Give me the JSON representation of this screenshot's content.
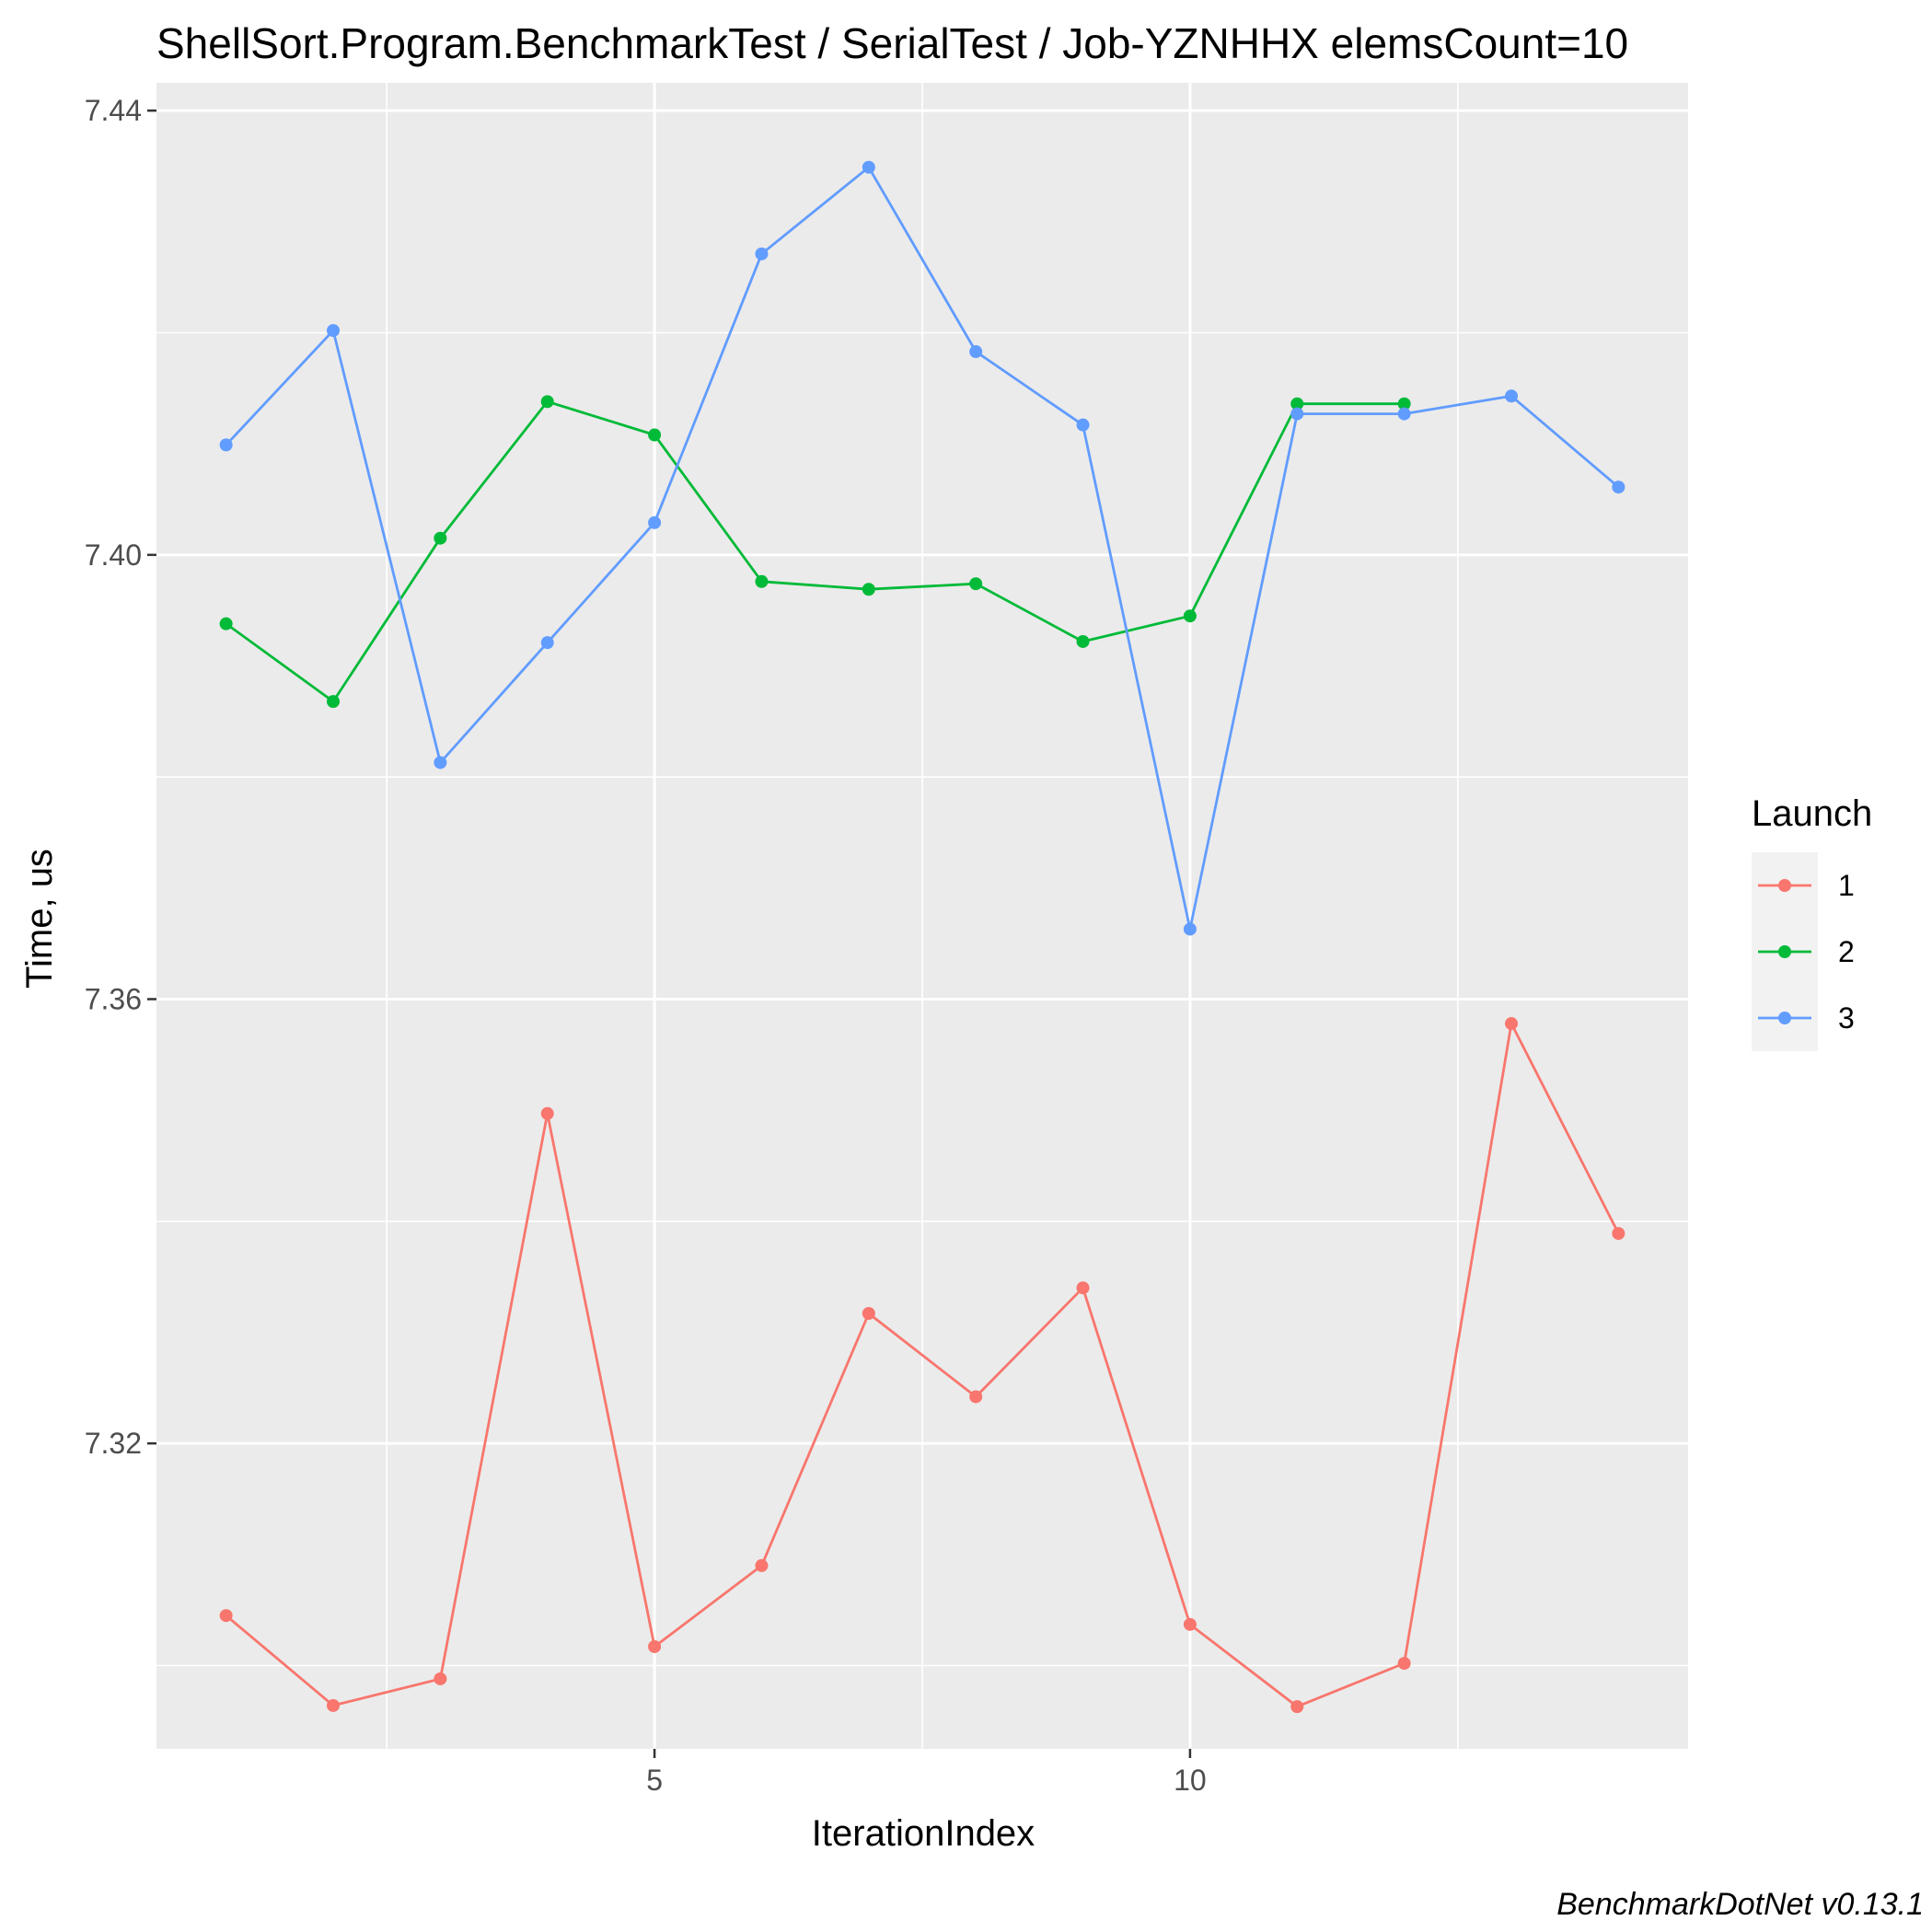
{
  "chart_data": {
    "type": "line",
    "title": "ShellSort.Program.BenchmarkTest / SerialTest / Job-YZNHHX elemsCount=10",
    "xlabel": "IterationIndex",
    "ylabel": "Time, us",
    "xlim": [
      0.35,
      14.65
    ],
    "ylim": [
      7.2925,
      7.4425
    ],
    "x_ticks": [
      5,
      10
    ],
    "x_tick_labels": [
      "5",
      "10"
    ],
    "y_ticks": [
      7.32,
      7.36,
      7.4,
      7.44
    ],
    "y_tick_labels": [
      "7.32",
      "7.36",
      "7.40",
      "7.44"
    ],
    "grid": true,
    "legend": {
      "title": "Launch",
      "position": "right"
    },
    "series": [
      {
        "name": "1",
        "color": "#F8766D",
        "x": [
          1,
          2,
          3,
          4,
          5,
          6,
          7,
          8,
          9,
          10,
          11,
          12,
          13,
          14
        ],
        "y": [
          7.3045,
          7.2964,
          7.2988,
          7.3497,
          7.3017,
          7.309,
          7.3317,
          7.3242,
          7.334,
          7.3037,
          7.2963,
          7.3002,
          7.3578,
          7.3389
        ]
      },
      {
        "name": "2",
        "color": "#00BA38",
        "x": [
          1,
          2,
          3,
          4,
          5,
          6,
          7,
          8,
          9,
          10,
          11,
          12
        ],
        "y": [
          7.3938,
          7.3868,
          7.4015,
          7.4138,
          7.4108,
          7.3976,
          7.3969,
          7.3974,
          7.3922,
          7.3945,
          7.4136,
          7.4136
        ]
      },
      {
        "name": "3",
        "color": "#619CFF",
        "x": [
          1,
          2,
          3,
          4,
          5,
          6,
          7,
          8,
          9,
          10,
          11,
          12,
          13,
          14
        ],
        "y": [
          7.4099,
          7.4202,
          7.3813,
          7.3921,
          7.4029,
          7.4271,
          7.4349,
          7.4183,
          7.4117,
          7.3663,
          7.4127,
          7.4127,
          7.4143,
          7.4061
        ]
      }
    ]
  },
  "footer": "BenchmarkDotNet v0.13.1"
}
